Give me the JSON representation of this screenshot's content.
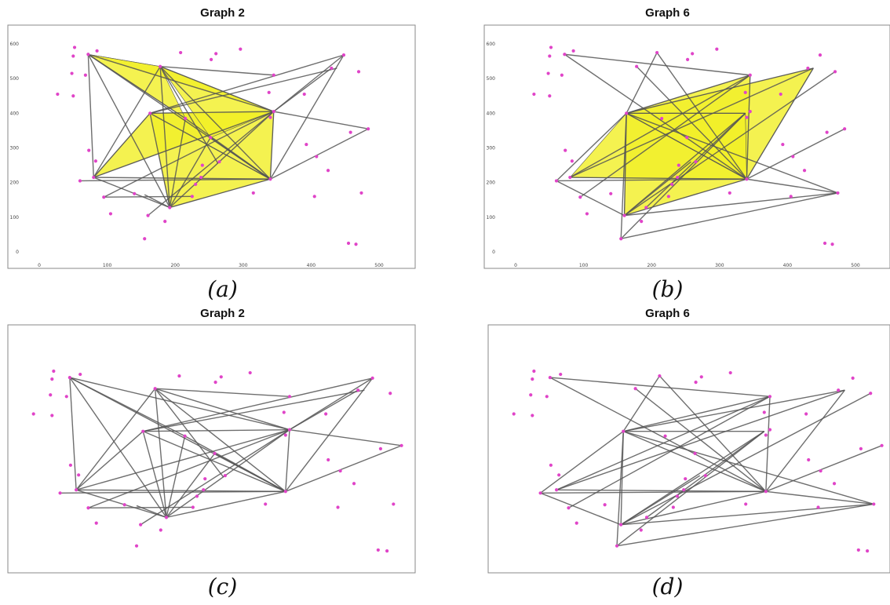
{
  "colors": {
    "point": "#e044c8",
    "edge": "#555555",
    "fill": "#f2ef2a"
  },
  "panels": [
    {
      "title": "Graph 2",
      "label": "(a)",
      "axes": true,
      "graph": "g2",
      "triangles": true
    },
    {
      "title": "Graph 6",
      "label": "(b)",
      "axes": true,
      "graph": "g6",
      "triangles": true
    },
    {
      "title": "Graph 2",
      "label": "(c)",
      "axes": false,
      "graph": "g2",
      "triangles": false
    },
    {
      "title": "Graph 6",
      "label": "(d)",
      "axes": false,
      "graph": "g6",
      "triangles": false
    }
  ],
  "axis": {
    "xticks": [
      "0",
      "100",
      "200",
      "300",
      "400",
      "500"
    ],
    "yticks": [
      "0",
      "100",
      "200",
      "300",
      "400",
      "500",
      "600"
    ]
  },
  "points": [
    [
      52,
      590
    ],
    [
      50,
      565
    ],
    [
      48,
      515
    ],
    [
      50,
      450
    ],
    [
      27,
      455
    ],
    [
      85,
      580
    ],
    [
      72,
      570
    ],
    [
      68,
      510
    ],
    [
      73,
      293
    ],
    [
      83,
      262
    ],
    [
      80,
      215
    ],
    [
      60,
      205
    ],
    [
      95,
      158
    ],
    [
      105,
      110
    ],
    [
      140,
      168
    ],
    [
      155,
      38
    ],
    [
      178,
      535
    ],
    [
      185,
      88
    ],
    [
      160,
      105
    ],
    [
      192,
      128
    ],
    [
      163,
      400
    ],
    [
      208,
      575
    ],
    [
      215,
      385
    ],
    [
      225,
      160
    ],
    [
      230,
      195
    ],
    [
      240,
      250
    ],
    [
      238,
      215
    ],
    [
      253,
      555
    ],
    [
      260,
      572
    ],
    [
      252,
      330
    ],
    [
      265,
      260
    ],
    [
      296,
      585
    ],
    [
      315,
      170
    ],
    [
      338,
      460
    ],
    [
      345,
      405
    ],
    [
      340,
      388
    ],
    [
      340,
      210
    ],
    [
      345,
      510
    ],
    [
      393,
      310
    ],
    [
      390,
      455
    ],
    [
      405,
      160
    ],
    [
      408,
      275
    ],
    [
      425,
      235
    ],
    [
      430,
      530
    ],
    [
      448,
      568
    ],
    [
      458,
      345
    ],
    [
      470,
      520
    ],
    [
      484,
      355
    ],
    [
      474,
      170
    ],
    [
      455,
      25
    ],
    [
      466,
      22
    ]
  ],
  "g2": {
    "edges": [
      [
        72,
        570,
        80,
        215
      ],
      [
        72,
        570,
        192,
        128
      ],
      [
        72,
        570,
        345,
        405
      ],
      [
        72,
        570,
        340,
        210
      ],
      [
        72,
        570,
        215,
        385
      ],
      [
        80,
        215,
        340,
        210
      ],
      [
        80,
        215,
        345,
        405
      ],
      [
        80,
        215,
        178,
        535
      ],
      [
        80,
        215,
        192,
        128
      ],
      [
        80,
        215,
        163,
        400
      ],
      [
        60,
        205,
        340,
        210
      ],
      [
        178,
        535,
        340,
        210
      ],
      [
        178,
        535,
        345,
        405
      ],
      [
        178,
        535,
        192,
        128
      ],
      [
        163,
        400,
        345,
        405
      ],
      [
        163,
        400,
        340,
        210
      ],
      [
        163,
        400,
        192,
        128
      ],
      [
        163,
        400,
        448,
        568
      ],
      [
        215,
        385,
        340,
        210
      ],
      [
        215,
        385,
        192,
        128
      ],
      [
        345,
        405,
        340,
        210
      ],
      [
        345,
        405,
        192,
        128
      ],
      [
        345,
        405,
        448,
        568
      ],
      [
        345,
        405,
        430,
        530
      ],
      [
        345,
        405,
        484,
        355
      ],
      [
        340,
        210,
        448,
        568
      ],
      [
        340,
        210,
        484,
        355
      ],
      [
        340,
        210,
        192,
        128
      ],
      [
        95,
        158,
        345,
        405
      ],
      [
        95,
        158,
        225,
        160
      ],
      [
        192,
        128,
        155,
        165
      ],
      [
        160,
        105,
        345,
        405
      ],
      [
        163,
        400,
        438,
        530
      ],
      [
        252,
        330,
        340,
        210
      ],
      [
        252,
        330,
        192,
        128
      ],
      [
        178,
        535,
        345,
        510
      ],
      [
        178,
        535,
        263,
        255
      ]
    ],
    "triangles": [
      [
        [
          72,
          570
        ],
        [
          345,
          405
        ],
        [
          178,
          535
        ]
      ],
      [
        [
          163,
          400
        ],
        [
          345,
          405
        ],
        [
          340,
          210
        ]
      ],
      [
        [
          163,
          400
        ],
        [
          192,
          128
        ],
        [
          340,
          210
        ]
      ],
      [
        [
          80,
          215
        ],
        [
          345,
          405
        ],
        [
          163,
          400
        ]
      ],
      [
        [
          72,
          570
        ],
        [
          215,
          385
        ],
        [
          178,
          535
        ]
      ],
      [
        [
          178,
          535
        ],
        [
          252,
          330
        ],
        [
          345,
          405
        ]
      ]
    ]
  },
  "g6": {
    "edges": [
      [
        72,
        570,
        340,
        210
      ],
      [
        72,
        570,
        345,
        510
      ],
      [
        163,
        400,
        345,
        510
      ],
      [
        163,
        400,
        438,
        530
      ],
      [
        163,
        400,
        340,
        210
      ],
      [
        163,
        400,
        160,
        105
      ],
      [
        163,
        400,
        155,
        38
      ],
      [
        163,
        400,
        60,
        205
      ],
      [
        163,
        400,
        208,
        575
      ],
      [
        163,
        400,
        474,
        170
      ],
      [
        80,
        215,
        340,
        210
      ],
      [
        80,
        215,
        438,
        530
      ],
      [
        60,
        205,
        160,
        105
      ],
      [
        60,
        205,
        340,
        210
      ],
      [
        345,
        510,
        340,
        210
      ],
      [
        438,
        530,
        340,
        210
      ],
      [
        470,
        520,
        160,
        105
      ],
      [
        484,
        355,
        340,
        210
      ],
      [
        474,
        170,
        340,
        210
      ],
      [
        474,
        170,
        160,
        105
      ],
      [
        474,
        170,
        155,
        38
      ],
      [
        160,
        105,
        340,
        210
      ],
      [
        160,
        105,
        338,
        400
      ],
      [
        155,
        38,
        338,
        400
      ],
      [
        163,
        400,
        338,
        400
      ],
      [
        208,
        575,
        340,
        210
      ],
      [
        178,
        535,
        340,
        210
      ],
      [
        95,
        158,
        345,
        510
      ],
      [
        160,
        105,
        258,
        260
      ],
      [
        192,
        128,
        338,
        400
      ],
      [
        80,
        215,
        345,
        510
      ]
    ],
    "triangles": [
      [
        [
          163,
          400
        ],
        [
          345,
          510
        ],
        [
          340,
          210
        ]
      ],
      [
        [
          163,
          400
        ],
        [
          438,
          530
        ],
        [
          340,
          210
        ]
      ],
      [
        [
          80,
          215
        ],
        [
          163,
          400
        ],
        [
          340,
          210
        ]
      ],
      [
        [
          163,
          400
        ],
        [
          160,
          105
        ],
        [
          340,
          210
        ]
      ],
      [
        [
          163,
          400
        ],
        [
          338,
          400
        ],
        [
          340,
          210
        ]
      ]
    ]
  }
}
